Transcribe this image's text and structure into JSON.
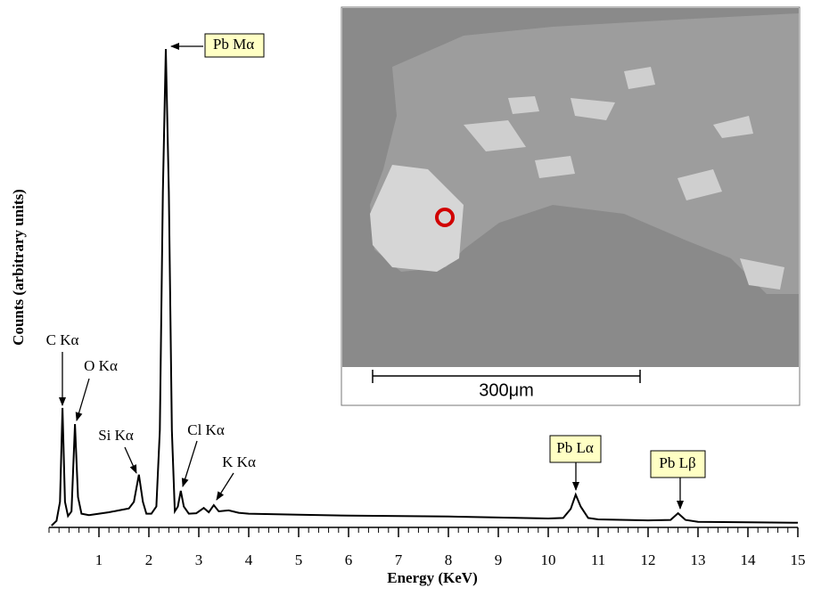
{
  "chart_data": {
    "type": "line",
    "x_label": "Energy (KeV)",
    "y_label": "Counts (arbitrary units)",
    "x": [
      0.05,
      0.15,
      0.22,
      0.27,
      0.32,
      0.38,
      0.45,
      0.52,
      0.58,
      0.65,
      0.8,
      1.0,
      1.2,
      1.4,
      1.6,
      1.7,
      1.8,
      1.88,
      1.95,
      2.05,
      2.15,
      2.22,
      2.28,
      2.34,
      2.4,
      2.46,
      2.52,
      2.58,
      2.64,
      2.7,
      2.8,
      2.95,
      3.1,
      3.2,
      3.3,
      3.4,
      3.6,
      3.8,
      4.0,
      5,
      6,
      7,
      8,
      9,
      10,
      10.3,
      10.45,
      10.55,
      10.65,
      10.8,
      11,
      12,
      12.45,
      12.6,
      12.75,
      13,
      14,
      15
    ],
    "values": [
      0,
      1,
      5,
      24.7,
      5,
      2,
      3,
      21.3,
      6,
      2.5,
      2.2,
      2.5,
      2.8,
      3.2,
      3.6,
      5,
      10.7,
      5,
      2.5,
      2.5,
      4,
      20,
      70,
      100,
      70,
      20,
      3,
      4,
      7.3,
      4,
      2.5,
      2.6,
      3.7,
      2.8,
      4.3,
      3,
      3.2,
      2.7,
      2.5,
      2.3,
      2.1,
      2,
      1.9,
      1.7,
      1.5,
      1.6,
      3.5,
      6.5,
      4,
      1.6,
      1.3,
      1.1,
      1.2,
      2.6,
      1.2,
      0.8,
      0.7,
      0.6
    ],
    "color": "#000000",
    "xlim": [
      0,
      15
    ],
    "xticks": [
      1,
      2,
      3,
      4,
      5,
      6,
      7,
      8,
      9,
      10,
      11,
      12,
      13,
      14,
      15
    ],
    "ylim": [
      0,
      100
    ],
    "annotations": [
      "C Kα",
      "O Kα",
      "Si Kα",
      "Pb Mα",
      "Cl Kα",
      "K Kα",
      "Pb Lα",
      "Pb Lβ"
    ]
  },
  "inset": {
    "scale_label": "300μm"
  }
}
